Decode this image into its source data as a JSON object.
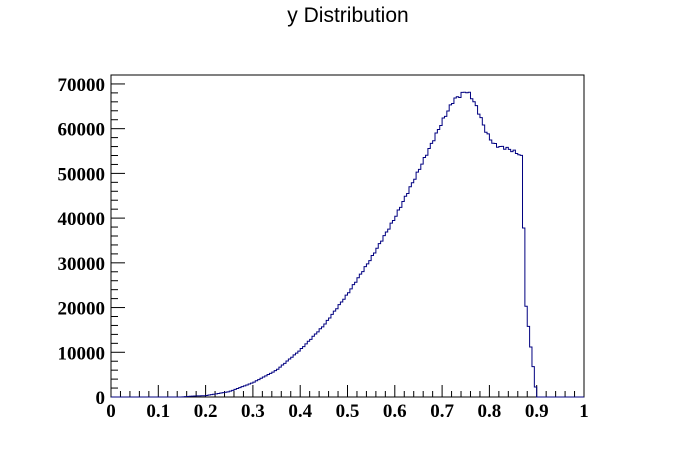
{
  "chart_data": {
    "type": "histogram",
    "title": "y Distribution",
    "xlabel": "",
    "ylabel": "",
    "xlim": [
      0,
      1
    ],
    "ylim": [
      0,
      72000
    ],
    "x_ticks": [
      "0",
      "0.1",
      "0.2",
      "0.3",
      "0.4",
      "0.5",
      "0.6",
      "0.7",
      "0.8",
      "0.9",
      "1"
    ],
    "y_ticks": [
      "0",
      "10000",
      "20000",
      "30000",
      "40000",
      "50000",
      "60000",
      "70000"
    ],
    "grid": false,
    "line_color": "#000080",
    "x_key": [
      0.0,
      0.15,
      0.17,
      0.2,
      0.25,
      0.3,
      0.35,
      0.4,
      0.45,
      0.5,
      0.55,
      0.6,
      0.65,
      0.7,
      0.725,
      0.74,
      0.75,
      0.76,
      0.77,
      0.78,
      0.79,
      0.8,
      0.81,
      0.82,
      0.83,
      0.84,
      0.85,
      0.86,
      0.87,
      0.875,
      0.9,
      1.0
    ],
    "y_key": [
      0,
      0,
      200,
      300,
      1200,
      3200,
      6000,
      10500,
      16000,
      23000,
      31000,
      40000,
      50500,
      61500,
      66500,
      67500,
      68500,
      67500,
      65500,
      63000,
      60000,
      58000,
      56500,
      56000,
      55800,
      55500,
      55000,
      54500,
      53500,
      22500,
      0,
      0
    ],
    "bin_width": 0.005
  }
}
